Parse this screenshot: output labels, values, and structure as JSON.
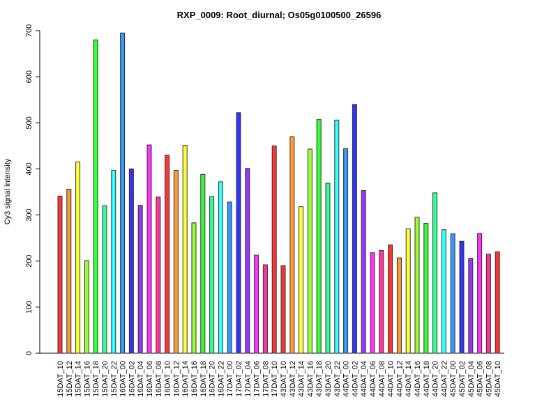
{
  "chart_data": {
    "type": "bar",
    "title": "RXP_0009: Root_diurnal; Os05g0100500_26596",
    "xlabel": "",
    "ylabel": "Cy3 signal intensity",
    "ylim": [
      0,
      700
    ],
    "yticks": [
      0,
      100,
      200,
      300,
      400,
      500,
      600,
      700
    ],
    "grid": false,
    "categories": [
      "15DAT_10",
      "15DAT_12",
      "15DAT_14",
      "15DAT_16",
      "15DAT_18",
      "15DAT_20",
      "15DAT_22",
      "16DAT_00",
      "16DAT_02",
      "16DAT_04",
      "16DAT_06",
      "16DAT_08",
      "16DAT_10",
      "16DAT_12",
      "16DAT_14",
      "16DAT_16",
      "16DAT_18",
      "16DAT_20",
      "16DAT_22",
      "17DAT_00",
      "17DAT_02",
      "17DAT_04",
      "17DAT_06",
      "17DAT_08",
      "17DAT_10",
      "43DAT_10",
      "43DAT_12",
      "43DAT_14",
      "43DAT_16",
      "43DAT_18",
      "43DAT_20",
      "43DAT_22",
      "44DAT_00",
      "44DAT_02",
      "44DAT_04",
      "44DAT_06",
      "44DAT_08",
      "44DAT_10",
      "44DAT_12",
      "44DAT_14",
      "44DAT_16",
      "44DAT_18",
      "44DAT_20",
      "44DAT_22",
      "45DAT_00",
      "45DAT_02",
      "45DAT_04",
      "45DAT_06",
      "45DAT_08",
      "45DAT_10"
    ],
    "values": [
      341,
      356,
      415,
      201,
      680,
      320,
      397,
      695,
      400,
      321,
      452,
      339,
      430,
      397,
      451,
      283,
      388,
      340,
      372,
      328,
      522,
      401,
      213,
      192,
      450,
      190,
      470,
      318,
      443,
      507,
      369,
      506,
      444,
      540,
      353,
      218,
      223,
      235,
      207,
      270,
      295,
      282,
      348,
      268,
      259,
      243,
      206,
      260,
      215,
      220
    ],
    "hour_colors": {
      "10": "#ff3333",
      "12": "#ff9933",
      "14": "#ffff33",
      "16": "#99ff33",
      "18": "#33ff33",
      "20": "#33ff99",
      "22": "#33ffff",
      "00": "#3399ff",
      "02": "#3333ff",
      "04": "#9933ff",
      "06": "#ff33ff",
      "08": "#ff3399"
    }
  }
}
